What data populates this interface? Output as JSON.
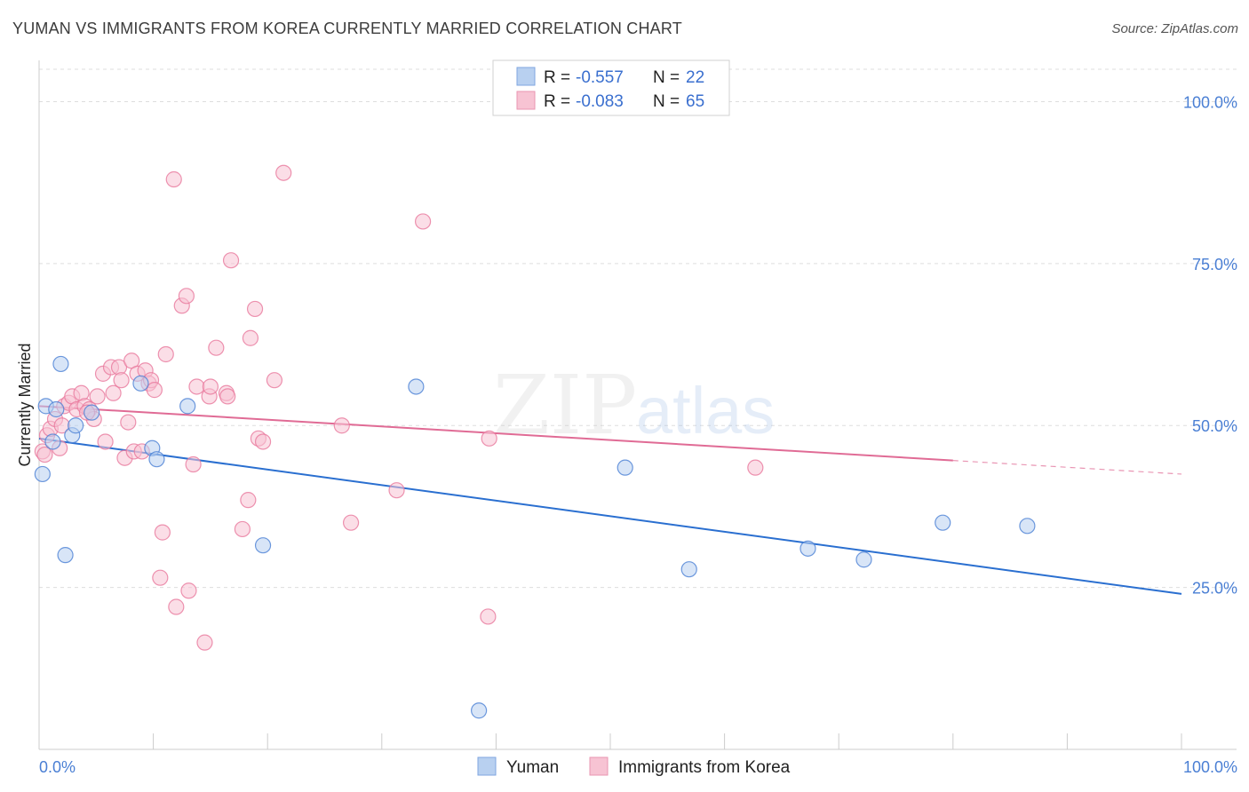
{
  "title": "YUMAN VS IMMIGRANTS FROM KOREA CURRENTLY MARRIED CORRELATION CHART",
  "source": "Source: ZipAtlas.com",
  "watermark": {
    "zip": "ZIP",
    "atlas": "atlas"
  },
  "colors": {
    "blue": "#4a7fd4",
    "blue_fill": "#b8d0f0",
    "blue_line": "#2a6fd0",
    "pink": "#e8789c",
    "pink_fill": "#f7c3d3",
    "pink_line": "#e06b95",
    "grid": "#dddddd"
  },
  "legend": {
    "rows": [
      {
        "r_label": "R =",
        "r_value": "-0.557",
        "n_label": "N =",
        "n_value": "22",
        "series": "blue"
      },
      {
        "r_label": "R =",
        "r_value": "-0.083",
        "n_label": "N =",
        "n_value": "65",
        "series": "pink"
      }
    ]
  },
  "chart_data": {
    "type": "scatter",
    "title": "YUMAN VS IMMIGRANTS FROM KOREA CURRENTLY MARRIED CORRELATION CHART",
    "xlabel": "",
    "ylabel": "Currently Married",
    "xlim": [
      0,
      100
    ],
    "ylim": [
      0,
      105
    ],
    "x_tick_labels": [
      {
        "value": 0,
        "label": "0.0%"
      },
      {
        "value": 100,
        "label": "100.0%"
      }
    ],
    "y_tick_labels": [
      {
        "value": 25,
        "label": "25.0%"
      },
      {
        "value": 50,
        "label": "50.0%"
      },
      {
        "value": 75,
        "label": "75.0%"
      },
      {
        "value": 100,
        "label": "100.0%"
      }
    ],
    "series": [
      {
        "name": "Yuman",
        "color": "blue",
        "points": [
          [
            0.3,
            42.5
          ],
          [
            0.6,
            53.0
          ],
          [
            1.2,
            47.5
          ],
          [
            1.5,
            52.5
          ],
          [
            1.9,
            59.5
          ],
          [
            2.3,
            30.0
          ],
          [
            2.9,
            48.5
          ],
          [
            3.2,
            50.0
          ],
          [
            4.6,
            52.0
          ],
          [
            8.9,
            56.5
          ],
          [
            9.9,
            46.5
          ],
          [
            10.3,
            44.8
          ],
          [
            13.0,
            53.0
          ],
          [
            19.6,
            31.5
          ],
          [
            33.0,
            56.0
          ],
          [
            38.5,
            6.0
          ],
          [
            51.3,
            43.5
          ],
          [
            56.9,
            27.8
          ],
          [
            67.3,
            31.0
          ],
          [
            72.2,
            29.3
          ],
          [
            79.1,
            35.0
          ],
          [
            86.5,
            34.5
          ]
        ],
        "trend": {
          "x0": 0,
          "y0": 48.0,
          "x1": 100,
          "y1": 24.0
        }
      },
      {
        "name": "Immigrants from Korea",
        "color": "pink",
        "points": [
          [
            0.3,
            46.0
          ],
          [
            0.7,
            48.5
          ],
          [
            1.0,
            49.5
          ],
          [
            1.4,
            51.0
          ],
          [
            1.8,
            46.5
          ],
          [
            2.2,
            53.0
          ],
          [
            2.6,
            53.5
          ],
          [
            2.9,
            54.5
          ],
          [
            3.3,
            52.5
          ],
          [
            3.7,
            55.0
          ],
          [
            4.0,
            53.0
          ],
          [
            4.4,
            52.5
          ],
          [
            4.8,
            51.0
          ],
          [
            5.1,
            54.5
          ],
          [
            5.6,
            58.0
          ],
          [
            5.8,
            47.5
          ],
          [
            6.3,
            59.0
          ],
          [
            6.5,
            55.0
          ],
          [
            7.0,
            59.0
          ],
          [
            7.2,
            57.0
          ],
          [
            7.5,
            45.0
          ],
          [
            7.8,
            50.5
          ],
          [
            8.1,
            60.0
          ],
          [
            8.3,
            46.0
          ],
          [
            8.6,
            58.0
          ],
          [
            9.0,
            46.0
          ],
          [
            9.3,
            58.5
          ],
          [
            9.6,
            56.5
          ],
          [
            9.8,
            57.0
          ],
          [
            10.1,
            55.5
          ],
          [
            10.6,
            26.5
          ],
          [
            10.8,
            33.5
          ],
          [
            11.1,
            61.0
          ],
          [
            11.8,
            88.0
          ],
          [
            12.0,
            22.0
          ],
          [
            12.5,
            68.5
          ],
          [
            12.9,
            70.0
          ],
          [
            13.1,
            24.5
          ],
          [
            13.5,
            44.0
          ],
          [
            13.8,
            56.0
          ],
          [
            14.5,
            16.5
          ],
          [
            14.9,
            54.5
          ],
          [
            15.0,
            56.0
          ],
          [
            15.5,
            62.0
          ],
          [
            16.4,
            55.0
          ],
          [
            16.5,
            54.5
          ],
          [
            16.8,
            75.5
          ],
          [
            17.8,
            34.0
          ],
          [
            18.3,
            38.5
          ],
          [
            18.5,
            63.5
          ],
          [
            18.9,
            68.0
          ],
          [
            19.2,
            48.0
          ],
          [
            19.6,
            47.5
          ],
          [
            20.6,
            57.0
          ],
          [
            21.4,
            89.0
          ],
          [
            26.5,
            50.0
          ],
          [
            27.3,
            35.0
          ],
          [
            31.3,
            40.0
          ],
          [
            33.6,
            81.5
          ],
          [
            39.3,
            20.5
          ],
          [
            39.4,
            48.0
          ],
          [
            62.7,
            43.5
          ],
          [
            0.5,
            45.5
          ],
          [
            2.0,
            50.0
          ],
          [
            4.2,
            52.0
          ]
        ],
        "trend": {
          "x0": 0,
          "y0": 53.0,
          "x1": 100,
          "y1": 42.5,
          "solid_until": 80
        }
      }
    ]
  },
  "bottom_legend": [
    {
      "label": "Yuman",
      "series": "blue"
    },
    {
      "label": "Immigrants from Korea",
      "series": "pink"
    }
  ]
}
